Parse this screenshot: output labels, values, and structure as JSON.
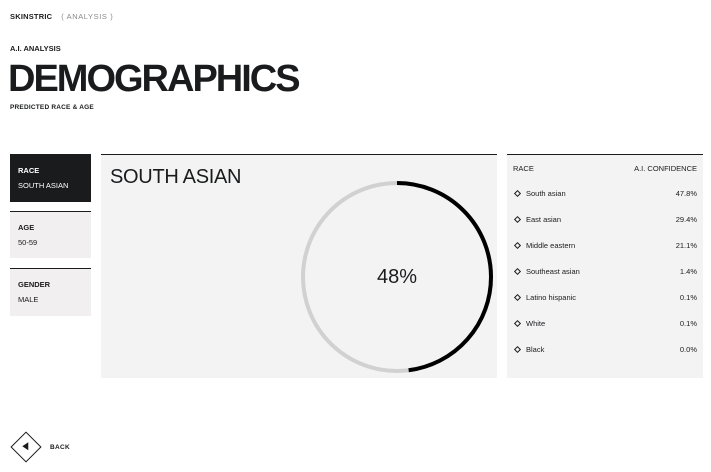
{
  "header": {
    "brand": "SKINSTRIC",
    "section": "( ANALYSIS )"
  },
  "intro": {
    "kicker": "A.I. ANALYSIS",
    "title": "DEMOGRAPHICS",
    "subtitle": "PREDICTED RACE & AGE"
  },
  "categories": [
    {
      "label": "RACE",
      "value": "SOUTH ASIAN",
      "active": true
    },
    {
      "label": "AGE",
      "value": "50-59",
      "active": false
    },
    {
      "label": "GENDER",
      "value": "MALE",
      "active": false
    }
  ],
  "main": {
    "title": "SOUTH ASIAN",
    "percent_label": "48%",
    "percent_value": 48,
    "ring_colors": {
      "track": "#d2d1d1",
      "fill": "#000000"
    }
  },
  "confidence_list": {
    "header_left": "RACE",
    "header_right": "A.I. CONFIDENCE",
    "rows": [
      {
        "label": "South asian",
        "value": "47.8%"
      },
      {
        "label": "East asian",
        "value": "29.4%"
      },
      {
        "label": "Middle eastern",
        "value": "21.1%"
      },
      {
        "label": "Southeast asian",
        "value": "1.4%"
      },
      {
        "label": "Latino hispanic",
        "value": "0.1%"
      },
      {
        "label": "White",
        "value": "0.1%"
      },
      {
        "label": "Black",
        "value": "0.0%"
      }
    ]
  },
  "footer": {
    "back_label": "BACK",
    "back_icon": "triangle-left-icon"
  }
}
